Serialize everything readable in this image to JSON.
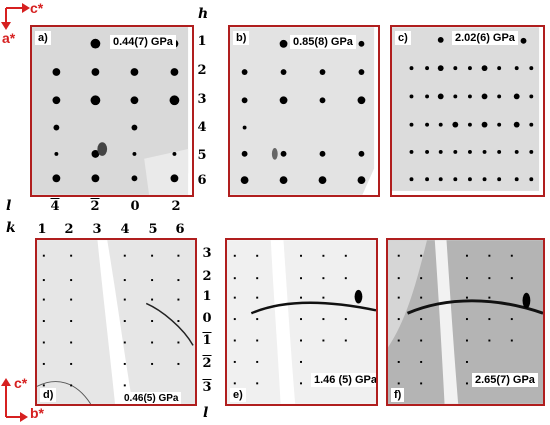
{
  "top_panels": [
    {
      "letter": "a)",
      "pressure": "0.44(7) GPa"
    },
    {
      "letter": "b)",
      "pressure": "0.85(8) GPa"
    },
    {
      "letter": "c)",
      "pressure": "2.02(6) GPa"
    }
  ],
  "bottom_panels": [
    {
      "letter": "d)",
      "pressure": "0.46(5) GPa"
    },
    {
      "letter": "e)",
      "pressure": "1.46 (5) GPa"
    },
    {
      "letter": "f)",
      "pressure": "2.65(7) GPa"
    }
  ],
  "top_axes": {
    "vertical_axis": "a*",
    "horizontal_axis": "c*",
    "row_index_name": "h",
    "row_indices": [
      "1",
      "2",
      "3",
      "4",
      "5",
      "6"
    ],
    "column_index_name": "l",
    "column_indices": [
      "4",
      "2",
      "0",
      "2"
    ],
    "column_overbar": [
      true,
      true,
      false,
      false
    ]
  },
  "bottom_axes": {
    "vertical_axis": "c*",
    "horizontal_axis": "b*",
    "column_index_name": "k",
    "column_indices": [
      "1",
      "2",
      "3",
      "4",
      "5",
      "6"
    ],
    "row_index_name": "l",
    "row_indices": [
      "3",
      "2",
      "1",
      "0",
      "1",
      "2",
      "3"
    ],
    "row_overbar": [
      false,
      false,
      false,
      false,
      true,
      true,
      true
    ]
  },
  "colors": {
    "frame": "#b01e1e",
    "arrow": "#d62020",
    "spot": "#000000",
    "background": "#d9d9d9"
  }
}
